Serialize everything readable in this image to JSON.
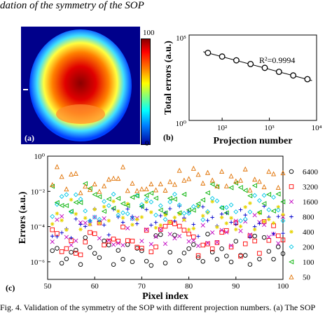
{
  "heading": "dation of the symmetry of the SOP",
  "caption": "Fig. 4. Validation of the symmetry of the SOP with different projection numbers. (a) The SOP",
  "panel_a": {
    "label": "(a)",
    "colorbar_max": "100",
    "colorbar_min": "0"
  },
  "panel_b": {
    "label": "(b)",
    "r2": "R²=0.9994"
  },
  "panel_c": {
    "label": "(c)"
  },
  "chart_data": [
    {
      "type": "line",
      "title": "",
      "xlabel": "Projection number",
      "ylabel": "Total errors (a.u.)",
      "xscale": "log",
      "yscale": "log",
      "xlim": [
        20,
        10000
      ],
      "ylim": [
        1,
        100000
      ],
      "xticks": [
        {
          "v": 100,
          "label": "10²"
        },
        {
          "v": 1000,
          "label": "10³"
        },
        {
          "v": 10000,
          "label": "10⁴"
        }
      ],
      "yticks": [
        {
          "v": 1,
          "label": "10⁰"
        },
        {
          "v": 100000,
          "label": "10⁵"
        }
      ],
      "x": [
        50,
        100,
        200,
        400,
        800,
        1600,
        3200,
        6400
      ],
      "y": [
        9000,
        5500,
        3300,
        2000,
        1200,
        700,
        430,
        260
      ],
      "fit": {
        "x": [
          40,
          8000
        ],
        "y": [
          10500,
          215
        ]
      },
      "annotation": "R²=0.9994"
    },
    {
      "type": "scatter",
      "title": "",
      "xlabel": "Pixel index",
      "ylabel": "Errors (a.u.)",
      "yscale": "log",
      "xlim": [
        50,
        100
      ],
      "ylim": [
        1e-07,
        1
      ],
      "xticks": [
        50,
        60,
        70,
        80,
        90,
        100
      ],
      "yticks": [
        {
          "v": 1e-06,
          "label": "10⁻⁶"
        },
        {
          "v": 0.0001,
          "label": "10⁻⁴"
        },
        {
          "v": 0.01,
          "label": "10⁻²"
        },
        {
          "v": 1,
          "label": "10⁰"
        }
      ],
      "legend_position": "right",
      "series": [
        {
          "name": "6400",
          "marker": "circle",
          "color": "#000000",
          "min": 5e-07,
          "max": 4e-05
        },
        {
          "name": "3200",
          "marker": "square",
          "color": "#ff0000",
          "min": 2e-06,
          "max": 0.0002
        },
        {
          "name": "1600",
          "marker": "x",
          "color": "#c000c0",
          "min": 8e-06,
          "max": 0.0006
        },
        {
          "name": "800",
          "marker": "plus",
          "color": "#0000cc",
          "min": 2e-05,
          "max": 0.0015
        },
        {
          "name": "400",
          "marker": "star",
          "color": "#e6d300",
          "min": 6e-05,
          "max": 0.004
        },
        {
          "name": "200",
          "marker": "diamond",
          "color": "#00c8e6",
          "min": 0.00015,
          "max": 0.008
        },
        {
          "name": "100",
          "marker": "triangle-left",
          "color": "#00b000",
          "min": 0.0006,
          "max": 0.03
        },
        {
          "name": "50",
          "marker": "triangle-up",
          "color": "#e07000",
          "min": 0.008,
          "max": 0.3
        }
      ]
    }
  ]
}
